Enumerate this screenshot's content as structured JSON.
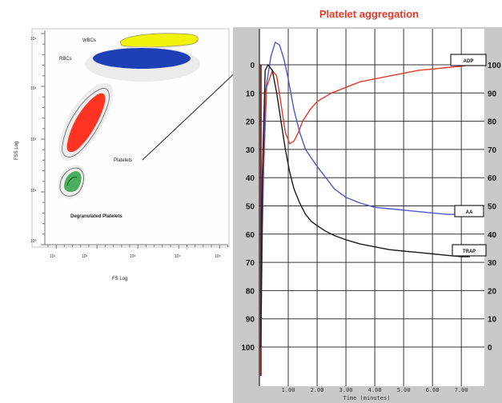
{
  "chart_data": [
    {
      "type": "scatter",
      "xlabel": "FS Log",
      "ylabel": "FSS Log",
      "x_ticks": [
        "10¹",
        "10²",
        "10³",
        "10⁴",
        "10⁵"
      ],
      "y_ticks": [
        "10⁴",
        "10³",
        "10²",
        "10¹",
        "10⁰"
      ],
      "populations": [
        {
          "name": "WBCs",
          "color": "#f2f20a"
        },
        {
          "name": "RBCs",
          "color": "#1f3fb6"
        },
        {
          "name": "Platelets",
          "color": "#ff3322"
        },
        {
          "name": "Degranulated Platelets",
          "color": "#2fa045"
        }
      ]
    },
    {
      "type": "line",
      "title": "Platelet aggregation",
      "xlabel": "Time (minutes)",
      "xlim": [
        0,
        7.8
      ],
      "ylim": [
        0,
        100
      ],
      "x_ticks": [
        "1.00",
        "2.00",
        "3.00",
        "4.00",
        "5.00",
        "6.00",
        "7.00"
      ],
      "y_ticks_left": [
        "0",
        "10",
        "20",
        "30",
        "40",
        "50",
        "60",
        "70",
        "80",
        "90",
        "100"
      ],
      "y_ticks_right": [
        "100",
        "90",
        "80",
        "70",
        "60",
        "50",
        "40",
        "30",
        "20",
        "10",
        "0"
      ],
      "grid": true,
      "series": [
        {
          "name": "ADP",
          "color": "#e33a2a",
          "points": [
            [
              0.05,
              100
            ],
            [
              0.1,
              50
            ],
            [
              0.25,
              8
            ],
            [
              0.45,
              2
            ],
            [
              0.6,
              4
            ],
            [
              0.75,
              14
            ],
            [
              0.9,
              24
            ],
            [
              1.05,
              28
            ],
            [
              1.2,
              27
            ],
            [
              1.35,
              24
            ],
            [
              1.5,
              20
            ],
            [
              1.75,
              16
            ],
            [
              2.0,
              13
            ],
            [
              2.5,
              10
            ],
            [
              3.0,
              8
            ],
            [
              3.5,
              6
            ],
            [
              4.0,
              5
            ],
            [
              4.5,
              4
            ],
            [
              5.0,
              3
            ],
            [
              5.5,
              2
            ],
            [
              6.0,
              1.5
            ],
            [
              6.5,
              1
            ],
            [
              7.0,
              0.5
            ],
            [
              7.3,
              0
            ]
          ]
        },
        {
          "name": "AA",
          "color": "#4a57c8",
          "points": [
            [
              0.05,
              100
            ],
            [
              0.1,
              60
            ],
            [
              0.2,
              10
            ],
            [
              0.4,
              -3
            ],
            [
              0.55,
              -8
            ],
            [
              0.7,
              -7
            ],
            [
              0.85,
              -2
            ],
            [
              1.0,
              5
            ],
            [
              1.2,
              16
            ],
            [
              1.4,
              24
            ],
            [
              1.6,
              30
            ],
            [
              1.8,
              33
            ],
            [
              2.0,
              36
            ],
            [
              2.3,
              40
            ],
            [
              2.6,
              44
            ],
            [
              3.0,
              47
            ],
            [
              3.5,
              49
            ],
            [
              4.0,
              50.5
            ],
            [
              4.5,
              51
            ],
            [
              5.0,
              51.5
            ],
            [
              5.5,
              52
            ],
            [
              6.0,
              52.5
            ],
            [
              6.5,
              53
            ],
            [
              7.0,
              53
            ],
            [
              7.3,
              53
            ]
          ]
        },
        {
          "name": "TRAP",
          "color": "#1b1b1b",
          "points": [
            [
              0.05,
              100
            ],
            [
              0.1,
              40
            ],
            [
              0.2,
              2
            ],
            [
              0.3,
              0
            ],
            [
              0.45,
              2
            ],
            [
              0.6,
              10
            ],
            [
              0.75,
              20
            ],
            [
              0.9,
              30
            ],
            [
              1.05,
              38
            ],
            [
              1.2,
              44
            ],
            [
              1.4,
              49
            ],
            [
              1.6,
              53
            ],
            [
              1.8,
              55.5
            ],
            [
              2.0,
              57
            ],
            [
              2.3,
              59
            ],
            [
              2.6,
              60.5
            ],
            [
              3.0,
              62
            ],
            [
              3.5,
              63.5
            ],
            [
              4.0,
              64.5
            ],
            [
              4.5,
              65.5
            ],
            [
              5.0,
              66
            ],
            [
              5.5,
              66.5
            ],
            [
              6.0,
              67
            ],
            [
              6.5,
              67.5
            ],
            [
              7.0,
              68
            ],
            [
              7.3,
              68
            ]
          ]
        }
      ]
    }
  ]
}
